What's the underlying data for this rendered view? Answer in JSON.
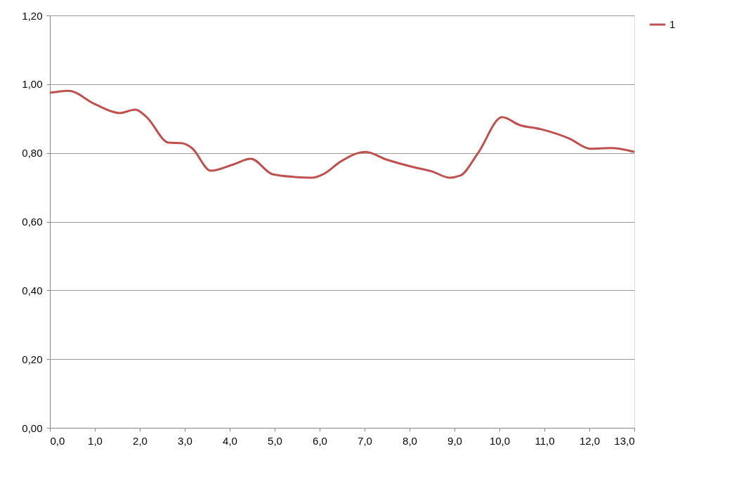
{
  "chart_data": {
    "type": "line",
    "xlim": [
      0,
      13
    ],
    "ylim": [
      0,
      1.2
    ],
    "xticks": [
      {
        "value": 0,
        "label": "0,0"
      },
      {
        "value": 1,
        "label": "1,0"
      },
      {
        "value": 2,
        "label": "2,0"
      },
      {
        "value": 3,
        "label": "3,0"
      },
      {
        "value": 4,
        "label": "4,0"
      },
      {
        "value": 5,
        "label": "5,0"
      },
      {
        "value": 6,
        "label": "6,0"
      },
      {
        "value": 7,
        "label": "7,0"
      },
      {
        "value": 8,
        "label": "8,0"
      },
      {
        "value": 9,
        "label": "9,0"
      },
      {
        "value": 10,
        "label": "10,0"
      },
      {
        "value": 11,
        "label": "11,0"
      },
      {
        "value": 12,
        "label": "12,0"
      },
      {
        "value": 13,
        "label": "13,0"
      }
    ],
    "yticks": [
      {
        "value": 0,
        "label": "0,00"
      },
      {
        "value": 0.2,
        "label": "0,20"
      },
      {
        "value": 0.4,
        "label": "0,40"
      },
      {
        "value": 0.6,
        "label": "0,60"
      },
      {
        "value": 0.8,
        "label": "0,80"
      },
      {
        "value": 1.0,
        "label": "1,00"
      },
      {
        "value": 1.2,
        "label": "1,20"
      }
    ],
    "grid": "y",
    "legend": "right",
    "marker": "none",
    "line_style": "solid",
    "series": [
      {
        "name": "1",
        "color": "#c0504d",
        "x": [
          0,
          0.41,
          1.0,
          1.55,
          1.9,
          2.14,
          2.64,
          2.95,
          3.16,
          3.58,
          4.05,
          4.47,
          4.95,
          5.45,
          5.84,
          6.08,
          6.47,
          7.02,
          7.48,
          8.11,
          8.5,
          8.89,
          9.13,
          9.52,
          10.06,
          10.45,
          10.92,
          11.55,
          12.02,
          12.48,
          13.0
        ],
        "values": [
          0.975,
          0.981,
          0.942,
          0.916,
          0.926,
          0.906,
          0.83,
          0.828,
          0.814,
          0.748,
          0.765,
          0.783,
          0.738,
          0.73,
          0.728,
          0.738,
          0.775,
          0.803,
          0.781,
          0.758,
          0.746,
          0.728,
          0.734,
          0.799,
          0.904,
          0.881,
          0.869,
          0.842,
          0.812,
          0.814,
          0.803
        ]
      }
    ]
  }
}
